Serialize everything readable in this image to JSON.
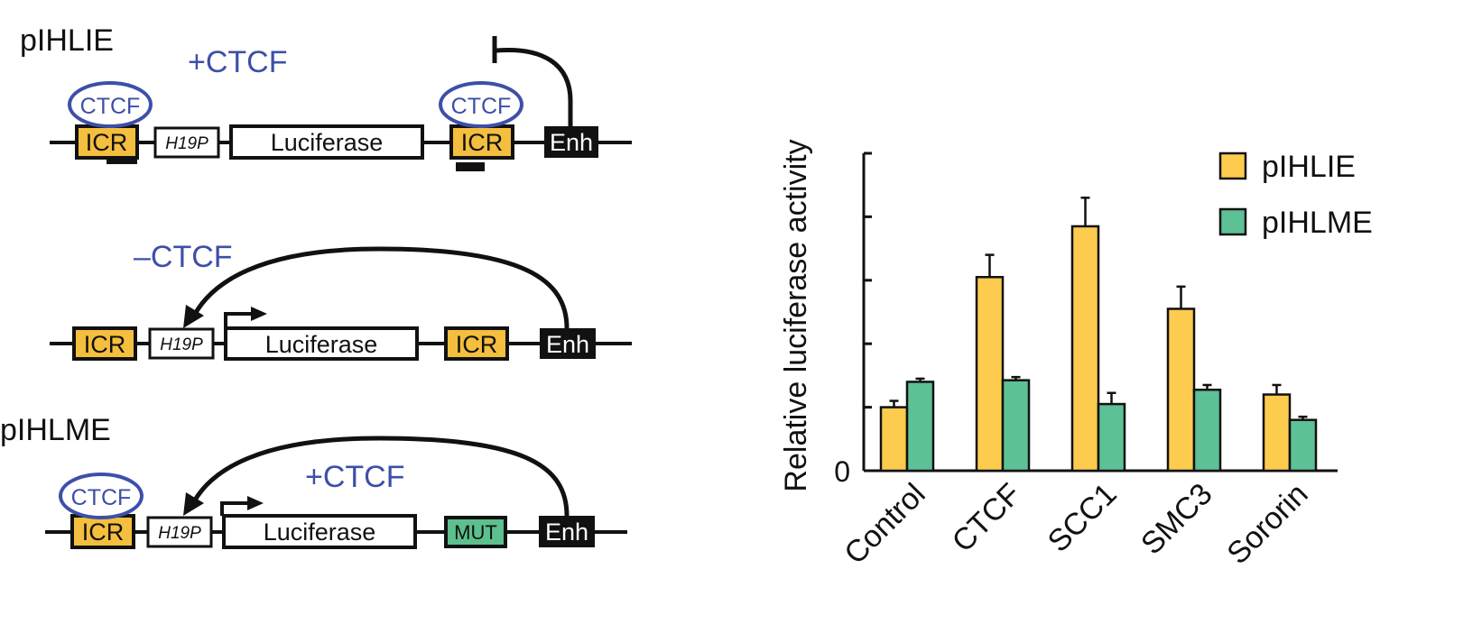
{
  "colors": {
    "ctcf_blue": "#3d4fa8",
    "icr_yellow": "#f4be3e",
    "mut_green": "#5dbf8e",
    "black": "#111111",
    "bar_yellow": "#fdcb4d",
    "bar_green": "#5dc196"
  },
  "diagram": {
    "constructs": [
      {
        "name": "pIHLIE",
        "ctcf_state": "+CTCF",
        "ctcf_left": "CTCF",
        "ctcf_right": "CTCF",
        "icr_left": "ICR",
        "promoter": "H19P",
        "reporter": "Luciferase",
        "icr_right": "ICR",
        "enhancer": "Enh"
      },
      {
        "name": "",
        "ctcf_state": "–CTCF",
        "icr_left": "ICR",
        "promoter": "H19P",
        "reporter": "Luciferase",
        "icr_right": "ICR",
        "enhancer": "Enh"
      },
      {
        "name": "pIHLME",
        "ctcf_state": "+CTCF",
        "ctcf_left": "CTCF",
        "icr_left": "ICR",
        "promoter": "H19P",
        "reporter": "Luciferase",
        "icr_right": "MUT",
        "enhancer": "Enh"
      }
    ]
  },
  "chart_data": {
    "type": "bar",
    "title": "",
    "xlabel": "",
    "ylabel": "Relative luciferase activity",
    "y_tick_label": "0",
    "ylim": [
      0,
      1
    ],
    "categories": [
      "Control",
      "CTCF",
      "SCC1",
      "SMC3",
      "Sororin"
    ],
    "series": [
      {
        "name": "pIHLIE",
        "color": "#fdcb4d",
        "values": [
          0.2,
          0.61,
          0.77,
          0.51,
          0.24
        ],
        "errors": [
          0.02,
          0.07,
          0.09,
          0.07,
          0.03
        ]
      },
      {
        "name": "pIHLME",
        "color": "#5dc196",
        "values": [
          0.28,
          0.285,
          0.21,
          0.255,
          0.16
        ],
        "errors": [
          0.01,
          0.01,
          0.035,
          0.015,
          0.01
        ]
      }
    ],
    "legend_position": "top-right",
    "grid": false
  }
}
